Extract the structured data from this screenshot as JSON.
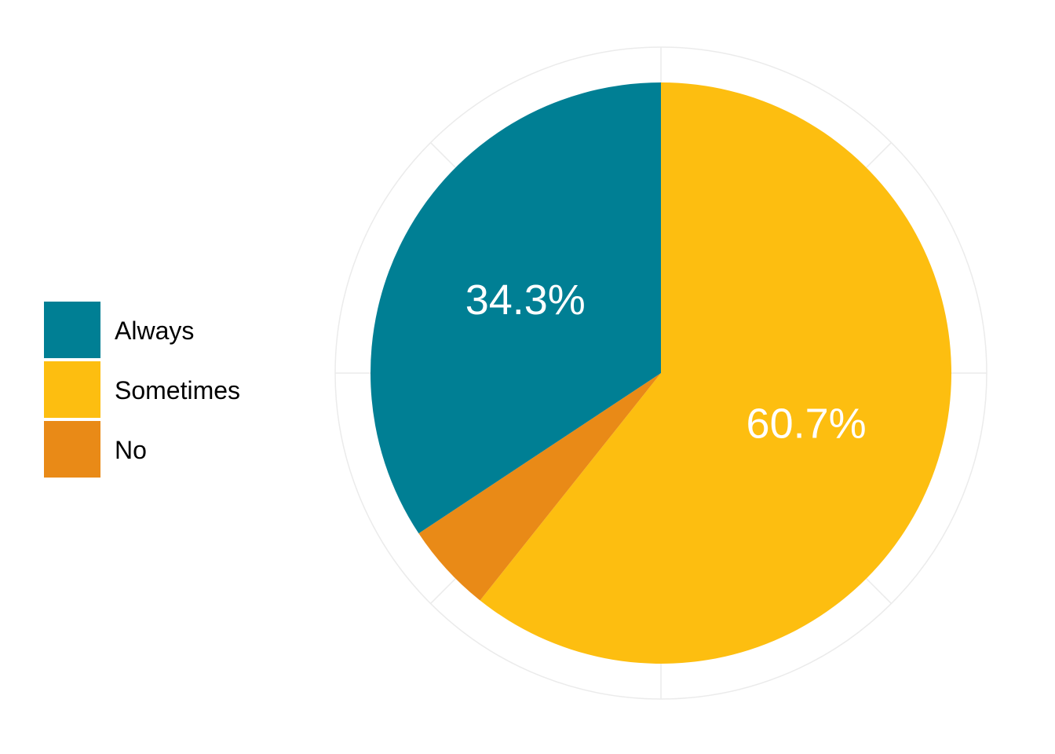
{
  "chart_data": {
    "type": "pie",
    "title": "",
    "legend_position": "left",
    "categories": [
      "Always",
      "Sometimes",
      "No"
    ],
    "values": [
      34.3,
      60.7,
      5.0
    ],
    "colors": [
      "#007F94",
      "#FDBE10",
      "#E98A17"
    ],
    "data_labels": [
      "34.3%",
      "60.7%",
      ""
    ],
    "start_angle_deg": 0,
    "direction": "clockwise",
    "grid": true,
    "grid_color": "#EBEBEB"
  }
}
